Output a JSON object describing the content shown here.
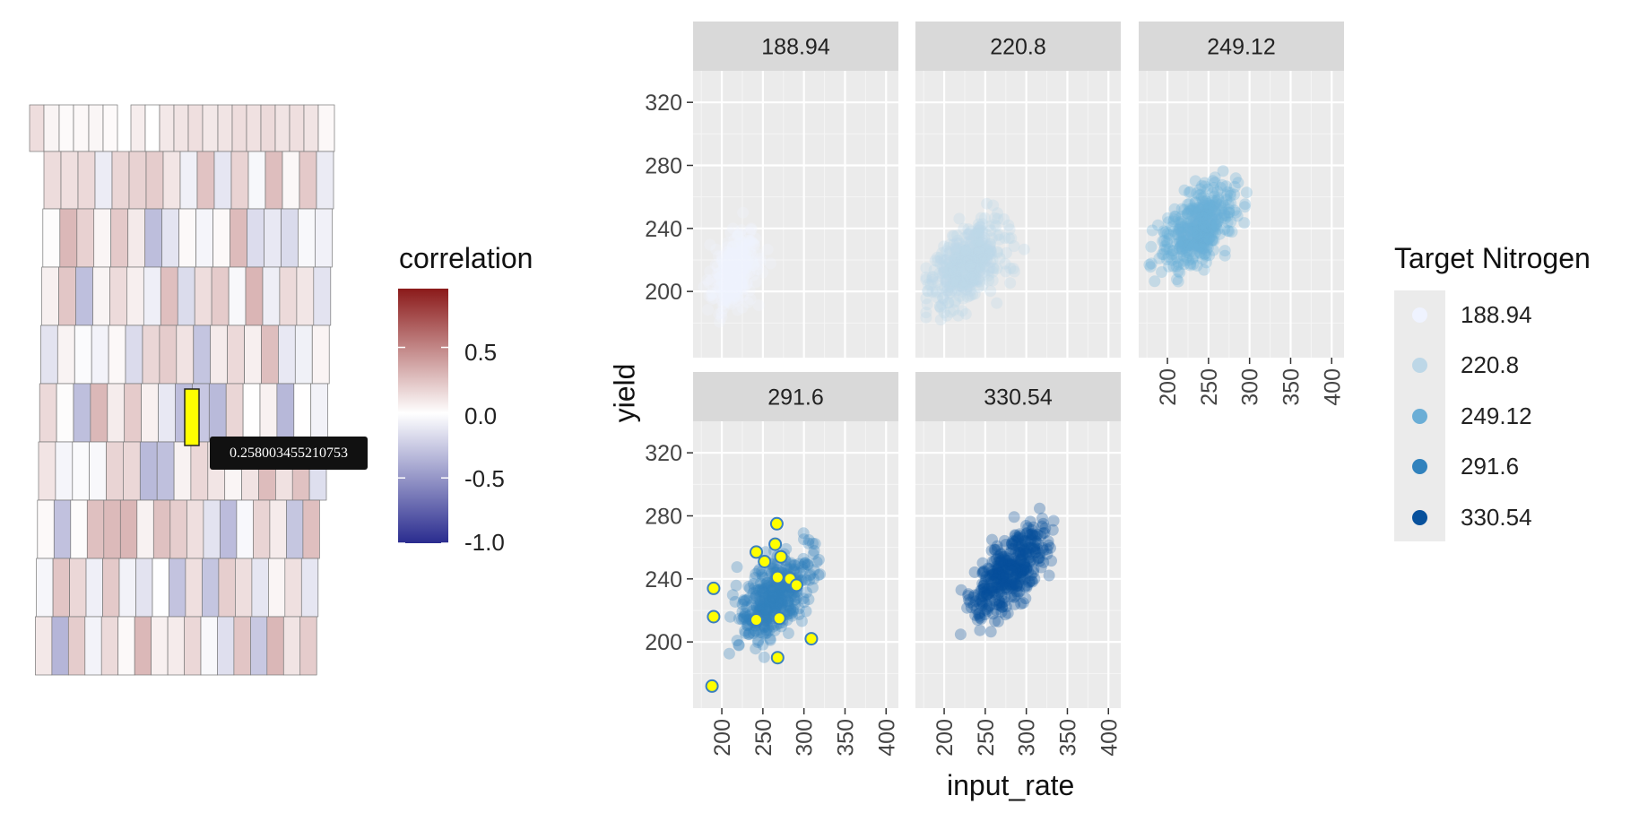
{
  "map": {
    "tooltip_value": "0.258003455210753",
    "highlight_color": "#ffff00"
  },
  "colorbar": {
    "title": "correlation",
    "ticks": [
      {
        "value": 0.5,
        "label": "0.5"
      },
      {
        "value": 0.0,
        "label": "0.0"
      },
      {
        "value": -0.5,
        "label": "-0.5"
      },
      {
        "value": -1.0,
        "label": "-1.0"
      }
    ],
    "range": [
      -1.0,
      0.95
    ],
    "colors": {
      "low": "#2a2c8f",
      "mid": "#ffffff",
      "high": "#8b1a1a"
    }
  },
  "chart_data": {
    "type": "scatter",
    "facet_by": "Target Nitrogen",
    "xlabel": "input_rate",
    "ylabel": "yield",
    "xlim": [
      165,
      415
    ],
    "ylim": [
      158,
      340
    ],
    "xticks": [
      200,
      250,
      300,
      350,
      400
    ],
    "yticks": [
      200,
      240,
      280,
      320
    ],
    "grid": true,
    "legend": {
      "title": "Target Nitrogen",
      "position": "right",
      "entries": [
        {
          "label": "188.94",
          "color": "#eff3ff"
        },
        {
          "label": "220.8",
          "color": "#bdd7e7"
        },
        {
          "label": "249.12",
          "color": "#6baed6"
        },
        {
          "label": "291.6",
          "color": "#3182bd"
        },
        {
          "label": "330.54",
          "color": "#08519c"
        }
      ]
    },
    "panels": [
      {
        "strip": "188.94",
        "color": "#eff3ff"
      },
      {
        "strip": "220.8",
        "color": "#bdd7e7"
      },
      {
        "strip": "249.12",
        "color": "#6baed6"
      },
      {
        "strip": "291.6",
        "color": "#3182bd"
      },
      {
        "strip": "330.54",
        "color": "#08519c"
      }
    ],
    "highlighted_panel": "291.6",
    "highlighted_points": [
      [
        190,
        234
      ],
      [
        190,
        216
      ],
      [
        188,
        172
      ],
      [
        242,
        257
      ],
      [
        252,
        251
      ],
      [
        242,
        214
      ],
      [
        267,
        275
      ],
      [
        265,
        262
      ],
      [
        272,
        254
      ],
      [
        268,
        241
      ],
      [
        283,
        240
      ],
      [
        291,
        236
      ],
      [
        270,
        215
      ],
      [
        268,
        190
      ],
      [
        309,
        202
      ]
    ]
  }
}
